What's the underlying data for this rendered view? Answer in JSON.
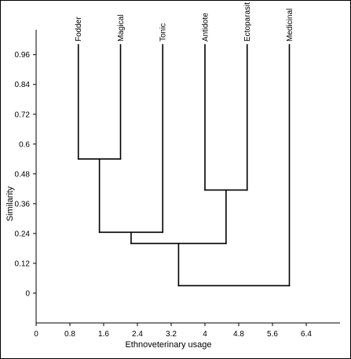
{
  "chart_data": {
    "type": "dendrogram",
    "xlabel": "Ethnoveterinary usage",
    "ylabel": "Similarity",
    "xlim": [
      0,
      7.2
    ],
    "ylim": [
      -0.12,
      1.06
    ],
    "xticks": [
      0,
      0.8,
      1.6,
      2.4,
      3.2,
      4,
      4.8,
      5.6,
      6.4
    ],
    "xtick_labels": [
      "0",
      "0.8",
      "1.6",
      "2.4",
      "3.2",
      "4",
      "4.8",
      "5.6",
      "6.4"
    ],
    "yticks": [
      0,
      0.12,
      0.24,
      0.36,
      0.48,
      0.6,
      0.72,
      0.84,
      0.96
    ],
    "ytick_labels": [
      "0",
      "0.12",
      "0.24",
      "0.36",
      "0.48",
      "0.6",
      "0.72",
      "0.84",
      "0.96"
    ],
    "leaves": [
      {
        "label": "Fodder",
        "x": 1.0,
        "top": 1.0
      },
      {
        "label": "Magical",
        "x": 2.0,
        "top": 1.0
      },
      {
        "label": "Tonic",
        "x": 3.0,
        "top": 1.0
      },
      {
        "label": "Antidote",
        "x": 4.0,
        "top": 1.0
      },
      {
        "label": "Ectoparasit",
        "x": 5.0,
        "top": 1.0
      },
      {
        "label": "Medicinal",
        "x": 6.0,
        "top": 1.0
      }
    ],
    "merges": [
      {
        "left_x": 1.0,
        "right_x": 2.0,
        "left_top": 1.0,
        "right_top": 1.0,
        "similarity": 0.54
      },
      {
        "left_x": 4.0,
        "right_x": 5.0,
        "left_top": 1.0,
        "right_top": 1.0,
        "similarity": 0.415
      },
      {
        "left_x": 1.5,
        "right_x": 3.0,
        "left_top": 0.54,
        "right_top": 1.0,
        "similarity": 0.245
      },
      {
        "left_x": 2.25,
        "right_x": 4.5,
        "left_top": 0.245,
        "right_top": 0.415,
        "similarity": 0.2
      },
      {
        "left_x": 3.375,
        "right_x": 6.0,
        "left_top": 0.2,
        "right_top": 1.0,
        "similarity": 0.03
      }
    ]
  }
}
